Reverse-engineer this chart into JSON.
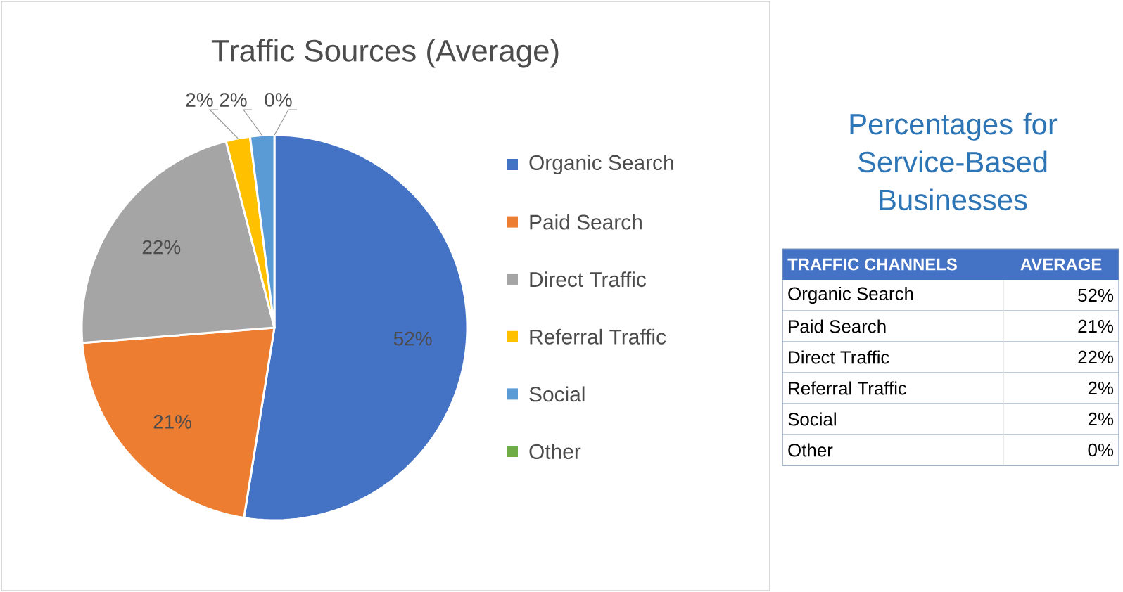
{
  "chart_data": [
    {
      "type": "pie",
      "title": "Traffic Sources (Average)",
      "categories": [
        "Organic Search",
        "Paid Search",
        "Direct Traffic",
        "Referral Traffic",
        "Social",
        "Other"
      ],
      "values": [
        52,
        21,
        22,
        2,
        2,
        0
      ],
      "value_labels": [
        "52%",
        "21%",
        "22%",
        "2%",
        "2%",
        "0%"
      ],
      "colors": [
        "#4472c4",
        "#ed7d31",
        "#a5a5a5",
        "#ffc000",
        "#5b9bd5",
        "#70ad47"
      ],
      "legend": "right"
    },
    {
      "type": "other",
      "title": "Percentages for Service-Based Businesses",
      "xlabel": "TRAFFIC CHANNELS",
      "ylabel": "AVERAGE",
      "categories": [
        "Organic Search",
        "Paid Search",
        "Direct Traffic",
        "Referral Traffic",
        "Social",
        "Other"
      ],
      "values": [
        52,
        21,
        22,
        2,
        2,
        0
      ],
      "value_labels": [
        "52%",
        "21%",
        "22%",
        "2%",
        "2%",
        "0%"
      ]
    }
  ]
}
